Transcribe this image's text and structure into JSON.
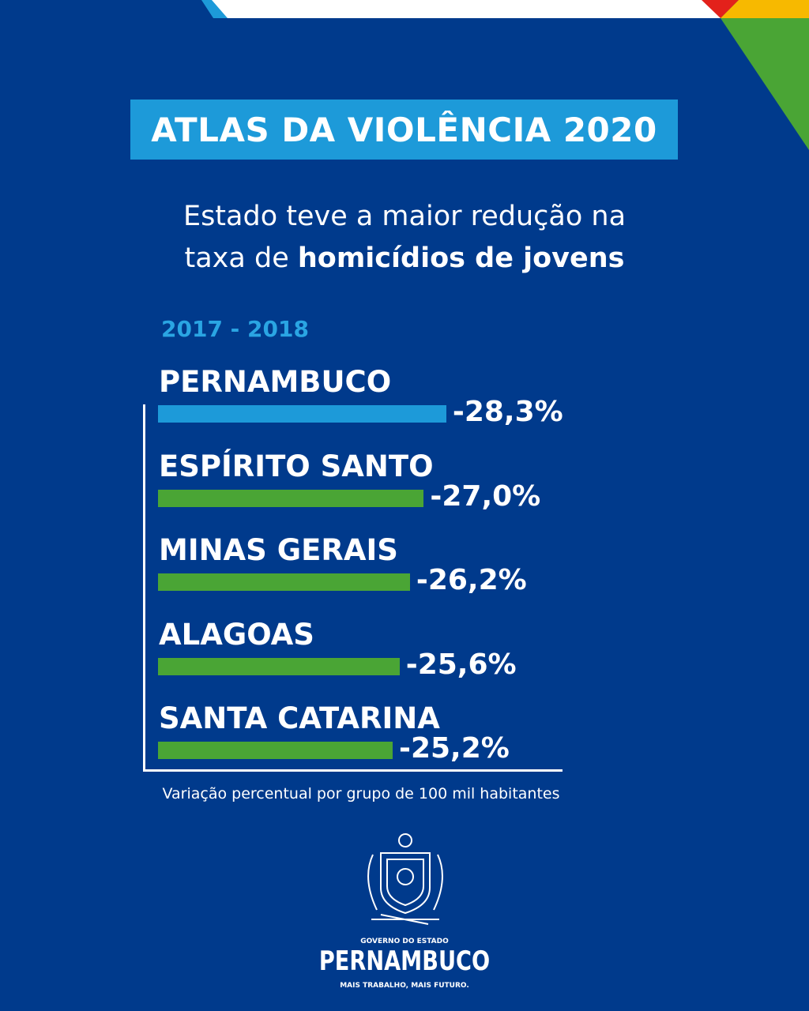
{
  "colors": {
    "background": "#003a8c",
    "title_bg": "#1d9ad9",
    "highlight_bar": "#1d9ad9",
    "bar": "#4aa535",
    "year": "#2aa5e3"
  },
  "title": "ATLAS DA VIOLÊNCIA 2020",
  "subtitle": {
    "line1": "Estado teve a maior redução na",
    "line2_pre": "taxa de ",
    "line2_bold": "homicídios de jovens"
  },
  "chart_data": {
    "type": "bar",
    "orientation": "horizontal",
    "title": "2017 - 2018",
    "categories": [
      "PERNAMBUCO",
      "ESPÍRITO SANTO",
      "MINAS GERAIS",
      "ALAGOAS",
      "SANTA CATARINA"
    ],
    "values": [
      -28.3,
      -27.0,
      -26.2,
      -25.6,
      -25.2
    ],
    "labels": [
      "-28,3%",
      "-27,0%",
      "-26,2%",
      "-25,6%",
      "-25,2%"
    ],
    "xlabel": "Variação percentual por grupo de 100 mil habitantes",
    "highlight": "PERNAMBUCO"
  },
  "logo": {
    "top": "GOVERNO DO ESTADO",
    "name": "PERNAMBUCO",
    "slogan": "MAIS TRABALHO, MAIS FUTURO."
  }
}
